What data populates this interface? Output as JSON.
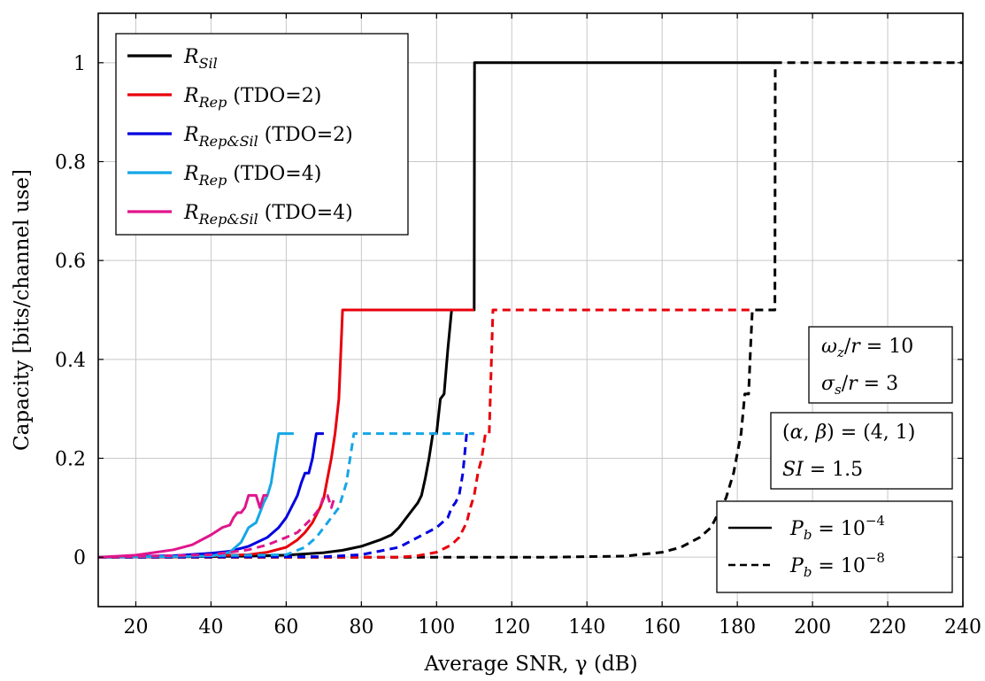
{
  "chart_data": {
    "type": "line",
    "xlabel": "Average SNR, γ (dB)",
    "ylabel": "Capacity [bits/channel use]",
    "xlim": [
      10,
      240
    ],
    "ylim": [
      -0.1,
      1.1
    ],
    "xticks": [
      "20",
      "40",
      "60",
      "80",
      "100",
      "120",
      "140",
      "160",
      "180",
      "200",
      "220",
      "240"
    ],
    "yticks": [
      "0",
      "0.2",
      "0.4",
      "0.6",
      "0.8",
      "1"
    ],
    "grid": true,
    "legend_position": "top-left",
    "legend": [
      {
        "sym": "R",
        "sub": "Sil",
        "suffix": "",
        "color": "#000000"
      },
      {
        "sym": "R",
        "sub": "Rep",
        "suffix": " (TDO=2)",
        "color": "#e8000b"
      },
      {
        "sym": "R",
        "sub": "Rep&Sil",
        "suffix": " (TDO=2)",
        "color": "#0000e0"
      },
      {
        "sym": "R",
        "sub": "Rep",
        "suffix": " (TDO=4)",
        "color": "#16a6e6"
      },
      {
        "sym": "R",
        "sub": "Rep&Sil",
        "suffix": " (TDO=4)",
        "color": "#e0158c"
      }
    ],
    "annotations": {
      "params1": [
        "ωz/r = 10",
        "σs/r = 3"
      ],
      "params2": [
        "(α, β) = (4, 1)",
        "SI = 1.5"
      ],
      "style_legend": [
        "Pb = 10^−4",
        "Pb = 10^−8"
      ]
    },
    "series": [
      {
        "name": "R_Sil",
        "color": "#000000",
        "dash": "solid",
        "x": [
          10,
          30,
          50,
          60,
          70,
          75,
          80,
          85,
          88,
          90,
          93,
          95,
          96,
          97,
          98,
          99,
          100,
          101,
          102,
          103,
          104,
          104.1,
          110,
          110.1,
          190
        ],
        "y": [
          0,
          0.0005,
          0.002,
          0.004,
          0.009,
          0.014,
          0.022,
          0.035,
          0.045,
          0.06,
          0.09,
          0.11,
          0.125,
          0.16,
          0.2,
          0.25,
          0.25,
          0.32,
          0.33,
          0.42,
          0.5,
          0.5,
          0.5,
          1,
          1
        ]
      },
      {
        "name": "R_Rep (TDO=2)",
        "color": "#e8000b",
        "dash": "solid",
        "x": [
          10,
          30,
          50,
          55,
          60,
          63,
          65,
          67,
          69,
          70,
          71,
          72,
          73,
          74,
          75,
          75.1,
          110
        ],
        "y": [
          0,
          0.001,
          0.005,
          0.01,
          0.02,
          0.035,
          0.05,
          0.07,
          0.1,
          0.12,
          0.16,
          0.2,
          0.25,
          0.32,
          0.5,
          0.5,
          0.5
        ]
      },
      {
        "name": "R_Rep&Sil (TDO=2)",
        "color": "#0000e0",
        "dash": "solid",
        "x": [
          10,
          30,
          40,
          45,
          50,
          55,
          58,
          60,
          62,
          63,
          64,
          65,
          66,
          67,
          68,
          69,
          70
        ],
        "y": [
          0,
          0.003,
          0.008,
          0.012,
          0.022,
          0.04,
          0.06,
          0.08,
          0.11,
          0.125,
          0.15,
          0.17,
          0.17,
          0.2,
          0.25,
          0.25,
          0.25
        ]
      },
      {
        "name": "R_Rep (TDO=4)",
        "color": "#16a6e6",
        "dash": "solid",
        "x": [
          10,
          40,
          45,
          48,
          50,
          52,
          53,
          54,
          55,
          56,
          57,
          58,
          62
        ],
        "y": [
          0,
          0.002,
          0.01,
          0.03,
          0.06,
          0.07,
          0.09,
          0.11,
          0.125,
          0.15,
          0.2,
          0.25,
          0.25
        ]
      },
      {
        "name": "R_Rep&Sil (TDO=4)",
        "color": "#e0158c",
        "dash": "solid",
        "x": [
          10,
          20,
          30,
          35,
          40,
          43,
          45,
          46,
          47,
          48,
          49,
          50,
          51,
          52,
          53,
          54,
          55
        ],
        "y": [
          0,
          0.004,
          0.015,
          0.025,
          0.045,
          0.06,
          0.065,
          0.08,
          0.09,
          0.09,
          0.1,
          0.125,
          0.125,
          0.125,
          0.1,
          0.125,
          0.125
        ]
      },
      {
        "name": "R_Sil (Pb=1e-8)",
        "color": "#000000",
        "dash": "dashed",
        "x": [
          10,
          130,
          150,
          160,
          165,
          170,
          173,
          175,
          177,
          179,
          181,
          182,
          183,
          183.5,
          184,
          185,
          185.1,
          190,
          190.1,
          240
        ],
        "y": [
          0,
          0,
          0.002,
          0.01,
          0.02,
          0.04,
          0.06,
          0.09,
          0.12,
          0.17,
          0.25,
          0.33,
          0.33,
          0.42,
          0.5,
          0.5,
          0.5,
          0.5,
          1,
          1
        ]
      },
      {
        "name": "R_Rep (TDO=2, Pb=1e-8)",
        "color": "#e8000b",
        "dash": "dashed",
        "x": [
          10,
          90,
          95,
          100,
          104,
          106,
          108,
          109,
          110,
          111,
          112,
          113,
          114,
          115,
          115.1,
          184
        ],
        "y": [
          0,
          0,
          0.003,
          0.01,
          0.025,
          0.04,
          0.07,
          0.1,
          0.125,
          0.17,
          0.2,
          0.25,
          0.25,
          0.5,
          0.5,
          0.5
        ]
      },
      {
        "name": "R_Rep&Sil (TDO=2, Pb=1e-8)",
        "color": "#0000e0",
        "dash": "dashed",
        "x": [
          10,
          70,
          80,
          90,
          95,
          100,
          103,
          104,
          105,
          106,
          107,
          108,
          109,
          110
        ],
        "y": [
          0,
          0.001,
          0.005,
          0.02,
          0.04,
          0.06,
          0.08,
          0.1,
          0.11,
          0.125,
          0.17,
          0.25,
          0.25,
          0.25
        ]
      },
      {
        "name": "R_Rep (TDO=4, Pb=1e-8)",
        "color": "#16a6e6",
        "dash": "dashed",
        "x": [
          10,
          60,
          65,
          68,
          70,
          72,
          74,
          75,
          76,
          77,
          78,
          110
        ],
        "y": [
          0,
          0.005,
          0.02,
          0.04,
          0.06,
          0.08,
          0.1,
          0.125,
          0.15,
          0.2,
          0.25,
          0.25
        ]
      },
      {
        "name": "R_Rep&Sil (TDO=4, Pb=1e-8)",
        "color": "#e0158c",
        "dash": "dashed",
        "x": [
          10,
          40,
          50,
          55,
          60,
          63,
          65,
          67,
          68,
          69,
          70,
          71,
          72,
          73
        ],
        "y": [
          0,
          0.005,
          0.015,
          0.025,
          0.04,
          0.05,
          0.065,
          0.08,
          0.09,
          0.1,
          0.125,
          0.125,
          0.1,
          0.125
        ]
      }
    ]
  }
}
